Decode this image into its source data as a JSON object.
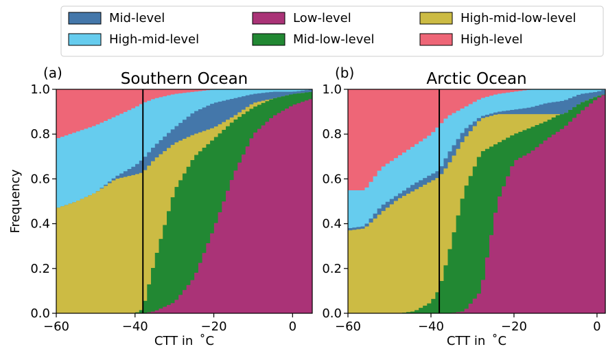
{
  "legend": [
    {
      "name": "Mid-level",
      "color": "#4477AA"
    },
    {
      "name": "High-mid-level",
      "color": "#66CCEE"
    },
    {
      "name": "Low-level",
      "color": "#AA3377"
    },
    {
      "name": "Mid-low-level",
      "color": "#228833"
    },
    {
      "name": "High-mid-low-level",
      "color": "#CCBB44"
    },
    {
      "name": "High-level",
      "color": "#EE6677"
    }
  ],
  "chart_data": [
    {
      "type": "area",
      "panel": "(a)",
      "title": "Southern Ocean",
      "xlabel": "CTT in $^\\circ$C",
      "xlabel_display": "CTT in  ˚C",
      "ylabel": "Frequency",
      "xlim": [
        -60,
        5
      ],
      "ylim": [
        0,
        1
      ],
      "xticks": [
        -60,
        -40,
        -20,
        0
      ],
      "xtick_labels": [
        "−60",
        "−40",
        "−20",
        "0"
      ],
      "yticks": [
        0.0,
        0.2,
        0.4,
        0.6,
        0.8,
        1.0
      ],
      "ytick_labels": [
        "0.0",
        "0.2",
        "0.4",
        "0.6",
        "0.8",
        "1.0"
      ],
      "vline_x": -38,
      "stack_order_bottom_to_top": [
        "Low-level",
        "Mid-low-level",
        "High-mid-low-level",
        "Mid-level",
        "High-mid-level",
        "High-level"
      ],
      "boundaries": {
        "x": [
          -60,
          -55,
          -50,
          -45,
          -40,
          -38,
          -35,
          -30,
          -25,
          -20,
          -15,
          -10,
          -5,
          0,
          5
        ],
        "Low-level": [
          0,
          0,
          0,
          0,
          0,
          0,
          0.01,
          0.05,
          0.16,
          0.38,
          0.62,
          0.8,
          0.88,
          0.93,
          0.96
        ],
        "Mid-low-level": [
          0,
          0,
          0,
          0,
          0,
          0.02,
          0.24,
          0.55,
          0.7,
          0.78,
          0.86,
          0.92,
          0.96,
          0.98,
          0.99
        ],
        "High-mid-low-level": [
          0.47,
          0.5,
          0.54,
          0.6,
          0.62,
          0.63,
          0.69,
          0.76,
          0.8,
          0.83,
          0.88,
          0.94,
          0.96,
          0.98,
          0.99
        ],
        "Mid-level": [
          0.47,
          0.5,
          0.54,
          0.61,
          0.66,
          0.69,
          0.75,
          0.83,
          0.9,
          0.94,
          0.96,
          0.98,
          0.99,
          0.99,
          1.0
        ],
        "High-mid-level": [
          0.78,
          0.81,
          0.84,
          0.88,
          0.92,
          0.94,
          0.96,
          0.98,
          0.99,
          1.0,
          1.0,
          1.0,
          1.0,
          1.0,
          1.0
        ],
        "High-level": [
          1,
          1,
          1,
          1,
          1,
          1,
          1,
          1,
          1,
          1,
          1,
          1,
          1,
          1,
          1
        ]
      }
    },
    {
      "type": "area",
      "panel": "(b)",
      "title": "Arctic Ocean",
      "xlabel": "CTT in $^\\circ$C",
      "xlabel_display": "CTT in  ˚C",
      "ylabel": "",
      "xlim": [
        -60,
        2
      ],
      "ylim": [
        0,
        1
      ],
      "xticks": [
        -60,
        -40,
        -20,
        0
      ],
      "xtick_labels": [
        "−60",
        "−40",
        "−20",
        "0"
      ],
      "yticks": [
        0.0,
        0.2,
        0.4,
        0.6,
        0.8,
        1.0
      ],
      "ytick_labels": [
        "0.0",
        "0.2",
        "0.4",
        "0.6",
        "0.8",
        "1.0"
      ],
      "vline_x": -38,
      "stack_order_bottom_to_top": [
        "Low-level",
        "Mid-low-level",
        "High-mid-low-level",
        "Mid-level",
        "High-mid-level",
        "High-level"
      ],
      "boundaries": {
        "x": [
          -60,
          -56,
          -52,
          -48,
          -44,
          -40,
          -38,
          -36,
          -32,
          -28,
          -24,
          -20,
          -16,
          -12,
          -8,
          -4,
          0,
          2
        ],
        "Low-level": [
          0,
          0,
          0,
          0,
          0,
          0,
          0,
          0,
          0.01,
          0.1,
          0.5,
          0.68,
          0.72,
          0.78,
          0.83,
          0.9,
          0.96,
          0.98
        ],
        "Mid-low-level": [
          0,
          0,
          0,
          0,
          0.01,
          0.05,
          0.11,
          0.25,
          0.55,
          0.72,
          0.76,
          0.8,
          0.83,
          0.86,
          0.9,
          0.94,
          0.97,
          0.98
        ],
        "High-mid-low-level": [
          0.37,
          0.38,
          0.45,
          0.51,
          0.55,
          0.59,
          0.61,
          0.66,
          0.78,
          0.87,
          0.89,
          0.89,
          0.89,
          0.89,
          0.89,
          0.94,
          0.97,
          0.98
        ],
        "Mid-level": [
          0.38,
          0.39,
          0.48,
          0.53,
          0.58,
          0.62,
          0.64,
          0.71,
          0.82,
          0.88,
          0.9,
          0.91,
          0.92,
          0.94,
          0.95,
          0.98,
          0.99,
          1.0
        ],
        "High-mid-level": [
          0.55,
          0.55,
          0.65,
          0.7,
          0.75,
          0.8,
          0.84,
          0.88,
          0.92,
          0.96,
          0.98,
          0.99,
          1.0,
          1.0,
          1.0,
          1.0,
          1.0,
          1.0
        ],
        "High-level": [
          1,
          1,
          1,
          1,
          1,
          1,
          1,
          1,
          1,
          1,
          1,
          1,
          1,
          1,
          1,
          1,
          1,
          1
        ]
      }
    }
  ]
}
